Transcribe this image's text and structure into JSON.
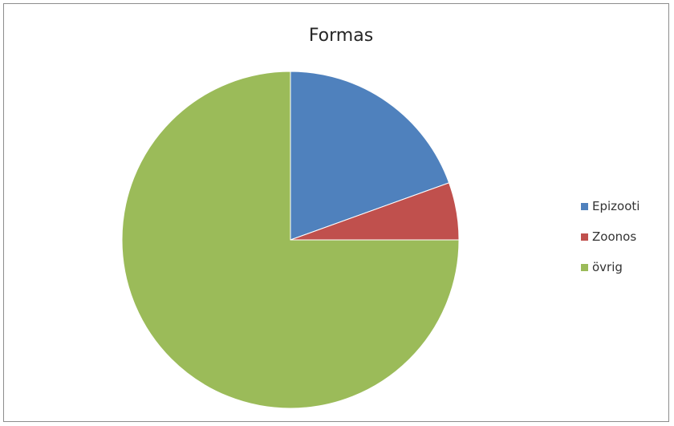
{
  "chart_data": {
    "type": "pie",
    "title": "Formas",
    "categories": [
      "Epizooti",
      "Zoonos",
      "övrig"
    ],
    "values": [
      19.5,
      5.5,
      75.0
    ],
    "colors": [
      "#4F81BD",
      "#C0504D",
      "#9BBB59"
    ],
    "legend_position": "right",
    "start_angle_deg": 0,
    "direction": "clockwise"
  }
}
